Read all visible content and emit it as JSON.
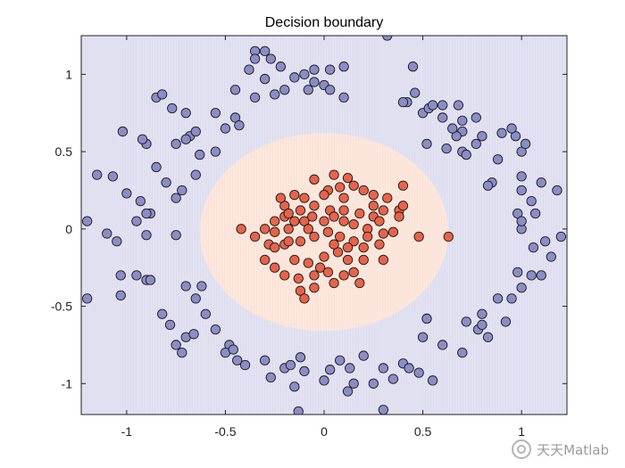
{
  "chart_data": {
    "type": "scatter",
    "title": "Decision boundary",
    "xlabel": "",
    "ylabel": "",
    "xlim": [
      -1.23,
      1.23
    ],
    "ylim": [
      -1.2,
      1.25
    ],
    "xticks": [
      "-1",
      "-0.5",
      "0",
      "0.5",
      "1"
    ],
    "xtick_values": [
      -1,
      -0.5,
      0,
      0.5,
      1
    ],
    "yticks": [
      "1",
      "0.5",
      "0",
      "-0.5",
      "-1"
    ],
    "ytick_values": [
      1,
      0.5,
      0,
      -0.5,
      -1
    ],
    "grid": false,
    "legend": "none",
    "background_regions": [
      {
        "class": "outer",
        "color": "#dcdcf0",
        "description_shape": "everywhere outside"
      },
      {
        "class": "inner",
        "color": "#fbe2d6",
        "shape": "ellipse",
        "center": [
          0.0,
          -0.02
        ],
        "radius_x": 0.63,
        "radius_y": 0.64
      }
    ],
    "series": [
      {
        "class": "outer",
        "color": "#8c8cc8",
        "points": [
          [
            -1.15,
            0.35
          ],
          [
            -1.07,
            0.34
          ],
          [
            -1.2,
            0.05
          ],
          [
            -1.1,
            -0.03
          ],
          [
            -1.05,
            -0.08
          ],
          [
            -0.95,
            0.05
          ],
          [
            -0.88,
            0.1
          ],
          [
            -1.0,
            0.23
          ],
          [
            -0.93,
            0.18
          ],
          [
            -0.9,
            -0.04
          ],
          [
            -0.75,
            -0.04
          ],
          [
            -1.03,
            -0.3
          ],
          [
            -0.95,
            -0.3
          ],
          [
            -0.9,
            -0.33
          ],
          [
            -1.03,
            -0.43
          ],
          [
            -0.88,
            -0.33
          ],
          [
            -0.7,
            -0.37
          ],
          [
            -1.2,
            -0.45
          ],
          [
            -0.62,
            -0.37
          ],
          [
            -0.65,
            -0.45
          ],
          [
            -0.6,
            -0.55
          ],
          [
            -0.82,
            -0.55
          ],
          [
            -0.78,
            -0.62
          ],
          [
            -0.7,
            -0.7
          ],
          [
            -0.66,
            -0.68
          ],
          [
            -0.55,
            -0.65
          ],
          [
            -0.75,
            -0.75
          ],
          [
            -0.72,
            -0.8
          ],
          [
            -0.48,
            -0.75
          ],
          [
            -0.5,
            -0.8
          ],
          [
            -0.46,
            -0.78
          ],
          [
            -0.44,
            -0.85
          ],
          [
            -0.4,
            -0.88
          ],
          [
            -0.3,
            -0.85
          ],
          [
            -0.27,
            -0.96
          ],
          [
            -0.2,
            -0.9
          ],
          [
            -0.17,
            -0.88
          ],
          [
            -0.12,
            -0.83
          ],
          [
            -0.1,
            -0.92
          ],
          [
            -0.15,
            -1.02
          ],
          [
            -0.13,
            -1.18
          ],
          [
            0.0,
            -0.98
          ],
          [
            0.03,
            -0.91
          ],
          [
            0.08,
            -0.85
          ],
          [
            0.13,
            -0.9
          ],
          [
            0.15,
            -1.0
          ],
          [
            0.12,
            -1.05
          ],
          [
            0.2,
            -0.82
          ],
          [
            0.25,
            -1.0
          ],
          [
            0.3,
            -0.9
          ],
          [
            0.35,
            -0.97
          ],
          [
            0.3,
            -1.17
          ],
          [
            0.4,
            -0.87
          ],
          [
            0.43,
            -0.9
          ],
          [
            0.48,
            -0.93
          ],
          [
            0.55,
            -0.98
          ],
          [
            0.5,
            -0.7
          ],
          [
            0.6,
            -0.75
          ],
          [
            0.52,
            -0.58
          ],
          [
            0.7,
            -0.8
          ],
          [
            0.72,
            -0.6
          ],
          [
            0.78,
            -0.65
          ],
          [
            0.8,
            -0.62
          ],
          [
            0.83,
            -0.7
          ],
          [
            0.8,
            -0.55
          ],
          [
            0.88,
            -0.45
          ],
          [
            0.92,
            -0.6
          ],
          [
            0.95,
            -0.45
          ],
          [
            1.0,
            -0.38
          ],
          [
            0.98,
            -0.28
          ],
          [
            1.05,
            -0.3
          ],
          [
            1.1,
            -0.3
          ],
          [
            1.15,
            -0.18
          ],
          [
            1.2,
            -0.05
          ],
          [
            1.12,
            -0.08
          ],
          [
            1.06,
            -0.12
          ],
          [
            1.07,
            0.1
          ],
          [
            1.0,
            0.0
          ],
          [
            0.98,
            0.1
          ],
          [
            1.0,
            0.25
          ],
          [
            1.0,
            0.05
          ],
          [
            1.1,
            0.3
          ],
          [
            1.18,
            0.25
          ],
          [
            1.0,
            0.34
          ],
          [
            1.05,
            0.18
          ],
          [
            0.85,
            0.3
          ],
          [
            0.83,
            0.28
          ],
          [
            1.0,
            0.5
          ],
          [
            1.02,
            0.55
          ],
          [
            0.97,
            0.6
          ],
          [
            0.95,
            0.65
          ],
          [
            0.9,
            0.62
          ],
          [
            0.88,
            0.45
          ],
          [
            0.8,
            0.6
          ],
          [
            0.77,
            0.55
          ],
          [
            0.7,
            0.63
          ],
          [
            0.7,
            0.7
          ],
          [
            0.77,
            0.72
          ],
          [
            0.67,
            0.6
          ],
          [
            0.65,
            0.65
          ],
          [
            0.6,
            0.72
          ],
          [
            0.6,
            0.8
          ],
          [
            0.68,
            0.8
          ],
          [
            0.62,
            0.52
          ],
          [
            0.52,
            0.55
          ],
          [
            0.5,
            0.75
          ],
          [
            0.46,
            0.88
          ],
          [
            0.42,
            0.82
          ],
          [
            0.4,
            0.82
          ],
          [
            0.45,
            1.05
          ],
          [
            0.53,
            0.78
          ],
          [
            0.7,
            0.5
          ],
          [
            0.72,
            0.48
          ],
          [
            0.55,
            0.8
          ],
          [
            0.32,
            1.25
          ],
          [
            0.1,
            1.05
          ],
          [
            0.03,
            1.03
          ],
          [
            -0.05,
            1.03
          ],
          [
            -0.08,
            0.9
          ],
          [
            -0.05,
            0.95
          ],
          [
            -0.1,
            1.0
          ],
          [
            0.0,
            0.93
          ],
          [
            0.03,
            0.9
          ],
          [
            0.1,
            0.85
          ],
          [
            -0.15,
            0.98
          ],
          [
            -0.22,
            1.05
          ],
          [
            -0.27,
            1.1
          ],
          [
            -0.3,
            1.15
          ],
          [
            -0.35,
            1.15
          ],
          [
            -0.38,
            1.03
          ],
          [
            -0.35,
            1.1
          ],
          [
            -0.3,
            0.97
          ],
          [
            -0.2,
            0.9
          ],
          [
            -0.25,
            0.87
          ],
          [
            -0.35,
            0.85
          ],
          [
            -0.45,
            0.9
          ],
          [
            -0.55,
            0.75
          ],
          [
            -0.45,
            0.72
          ],
          [
            -0.43,
            0.67
          ],
          [
            -0.5,
            0.65
          ],
          [
            -0.7,
            0.75
          ],
          [
            -0.85,
            0.85
          ],
          [
            -0.82,
            0.87
          ],
          [
            -0.77,
            0.78
          ],
          [
            -0.68,
            0.6
          ],
          [
            -0.7,
            0.58
          ],
          [
            -0.75,
            0.55
          ],
          [
            -0.65,
            0.63
          ],
          [
            -0.63,
            0.48
          ],
          [
            -0.55,
            0.5
          ],
          [
            -0.65,
            0.35
          ],
          [
            -0.72,
            0.25
          ],
          [
            -0.85,
            0.4
          ],
          [
            -0.9,
            0.55
          ],
          [
            -0.92,
            0.58
          ],
          [
            -1.02,
            0.63
          ],
          [
            -0.8,
            0.3
          ],
          [
            -0.75,
            0.2
          ],
          [
            -0.9,
            0.1
          ]
        ]
      },
      {
        "class": "inner",
        "color": "#e8634a",
        "points": [
          [
            -0.05,
            0.32
          ],
          [
            0.05,
            0.35
          ],
          [
            0.12,
            0.33
          ],
          [
            -0.15,
            0.22
          ],
          [
            -0.1,
            0.2
          ],
          [
            0.02,
            0.25
          ],
          [
            0.08,
            0.27
          ],
          [
            0.15,
            0.28
          ],
          [
            0.2,
            0.25
          ],
          [
            0.25,
            0.22
          ],
          [
            -0.2,
            0.15
          ],
          [
            -0.22,
            0.2
          ],
          [
            0.0,
            0.22
          ],
          [
            0.1,
            0.2
          ],
          [
            0.25,
            0.15
          ],
          [
            0.3,
            0.12
          ],
          [
            0.38,
            0.12
          ],
          [
            0.4,
            0.28
          ],
          [
            0.32,
            0.2
          ],
          [
            -0.25,
            0.05
          ],
          [
            -0.2,
            0.08
          ],
          [
            -0.18,
            0.1
          ],
          [
            -0.12,
            0.12
          ],
          [
            -0.05,
            0.15
          ],
          [
            0.03,
            0.12
          ],
          [
            0.1,
            0.12
          ],
          [
            0.18,
            0.1
          ],
          [
            0.25,
            0.08
          ],
          [
            0.28,
            0.05
          ],
          [
            -0.3,
            0.0
          ],
          [
            -0.25,
            -0.02
          ],
          [
            -0.18,
            0.0
          ],
          [
            -0.1,
            0.05
          ],
          [
            0.0,
            0.05
          ],
          [
            0.05,
            0.08
          ],
          [
            0.15,
            0.03
          ],
          [
            0.22,
            0.0
          ],
          [
            0.3,
            -0.03
          ],
          [
            0.38,
            0.08
          ],
          [
            0.48,
            -0.05
          ],
          [
            -0.42,
            0.0
          ],
          [
            -0.35,
            -0.05
          ],
          [
            -0.28,
            -0.1
          ],
          [
            -0.2,
            -0.1
          ],
          [
            -0.12,
            -0.08
          ],
          [
            -0.05,
            -0.05
          ],
          [
            0.02,
            -0.02
          ],
          [
            0.08,
            -0.05
          ],
          [
            0.15,
            -0.08
          ],
          [
            0.2,
            -0.12
          ],
          [
            0.28,
            -0.1
          ],
          [
            0.35,
            -0.02
          ],
          [
            -0.3,
            -0.2
          ],
          [
            -0.25,
            -0.25
          ],
          [
            -0.15,
            -0.2
          ],
          [
            -0.08,
            -0.22
          ],
          [
            0.0,
            -0.18
          ],
          [
            0.07,
            -0.15
          ],
          [
            0.12,
            -0.2
          ],
          [
            0.2,
            -0.2
          ],
          [
            -0.2,
            -0.3
          ],
          [
            -0.13,
            -0.32
          ],
          [
            -0.05,
            -0.3
          ],
          [
            0.02,
            -0.28
          ],
          [
            0.1,
            -0.3
          ],
          [
            0.15,
            -0.28
          ],
          [
            0.18,
            -0.35
          ],
          [
            -0.12,
            -0.4
          ],
          [
            -0.05,
            -0.38
          ],
          [
            0.05,
            -0.35
          ],
          [
            -0.1,
            -0.45
          ],
          [
            -0.25,
            -0.12
          ],
          [
            0.12,
            -0.12
          ],
          [
            -0.08,
            0.0
          ],
          [
            -0.15,
            0.05
          ],
          [
            0.05,
            -0.1
          ],
          [
            0.4,
            0.15
          ],
          [
            0.63,
            -0.05
          ],
          [
            -0.06,
            0.08
          ],
          [
            0.22,
            -0.05
          ],
          [
            -0.18,
            -0.08
          ],
          [
            0.1,
            0.05
          ],
          [
            -0.02,
            -0.25
          ],
          [
            0.3,
            -0.2
          ]
        ]
      }
    ]
  }
}
